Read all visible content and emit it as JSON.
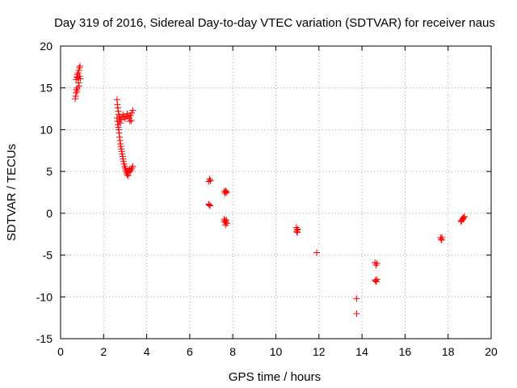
{
  "chart_data": {
    "type": "scatter",
    "title": "Day 319 of 2016, Sidereal Day-to-day VTEC variation (SDTVAR) for receiver naus",
    "xlabel": "GPS time / hours",
    "ylabel": "SDTVAR / TECUs",
    "xlim": [
      0,
      20
    ],
    "ylim": [
      -15,
      20
    ],
    "grid": true,
    "marker": "+",
    "marker_color": "#ff0000",
    "x_ticks": [
      0,
      2,
      4,
      6,
      8,
      10,
      12,
      14,
      16,
      18,
      20
    ],
    "x_tick_labels": [
      "0",
      "2",
      "4",
      "6",
      "8",
      "10",
      "12",
      "14",
      "16",
      "18",
      "20"
    ],
    "y_ticks": [
      -15,
      -10,
      -5,
      0,
      5,
      10,
      15,
      20
    ],
    "y_tick_labels": [
      "-15",
      "-10",
      "-5",
      "0",
      "5",
      "10",
      "15",
      "20"
    ],
    "series": [
      {
        "name": "SDTVAR",
        "points": [
          [
            0.68,
            13.7
          ],
          [
            0.7,
            14.0
          ],
          [
            0.72,
            14.4
          ],
          [
            0.74,
            14.8
          ],
          [
            0.76,
            14.6
          ],
          [
            0.78,
            15.0
          ],
          [
            0.72,
            16.0
          ],
          [
            0.75,
            16.3
          ],
          [
            0.78,
            16.6
          ],
          [
            0.8,
            16.2
          ],
          [
            0.82,
            16.8
          ],
          [
            0.85,
            17.1
          ],
          [
            0.87,
            17.4
          ],
          [
            0.9,
            17.6
          ],
          [
            0.88,
            16.4
          ],
          [
            0.92,
            16.1
          ],
          [
            0.84,
            15.6
          ],
          [
            0.86,
            15.2
          ],
          [
            2.62,
            13.6
          ],
          [
            2.64,
            13.0
          ],
          [
            2.66,
            12.6
          ],
          [
            2.68,
            12.2
          ],
          [
            2.7,
            11.8
          ],
          [
            2.62,
            11.4
          ],
          [
            2.64,
            11.0
          ],
          [
            2.66,
            10.6
          ],
          [
            2.68,
            10.3
          ],
          [
            2.7,
            10.0
          ],
          [
            2.72,
            9.6
          ],
          [
            2.74,
            9.1
          ],
          [
            2.76,
            8.7
          ],
          [
            2.78,
            8.3
          ],
          [
            2.8,
            8.0
          ],
          [
            2.82,
            7.7
          ],
          [
            2.84,
            7.4
          ],
          [
            2.86,
            7.1
          ],
          [
            2.88,
            6.8
          ],
          [
            2.9,
            6.5
          ],
          [
            2.92,
            6.2
          ],
          [
            2.95,
            5.9
          ],
          [
            2.98,
            5.6
          ],
          [
            3.0,
            5.4
          ],
          [
            3.03,
            5.2
          ],
          [
            3.05,
            5.0
          ],
          [
            3.08,
            4.8
          ],
          [
            3.1,
            4.6
          ],
          [
            3.13,
            4.9
          ],
          [
            3.16,
            5.1
          ],
          [
            3.2,
            5.3
          ],
          [
            3.24,
            5.0
          ],
          [
            3.28,
            5.2
          ],
          [
            3.32,
            5.4
          ],
          [
            3.35,
            5.6
          ],
          [
            3.14,
            4.5
          ],
          [
            2.75,
            11.6
          ],
          [
            2.8,
            11.2
          ],
          [
            2.85,
            11.5
          ],
          [
            2.9,
            11.8
          ],
          [
            2.95,
            11.5
          ],
          [
            3.0,
            11.3
          ],
          [
            3.05,
            11.6
          ],
          [
            3.1,
            11.9
          ],
          [
            3.15,
            11.6
          ],
          [
            3.2,
            11.4
          ],
          [
            3.25,
            11.7
          ],
          [
            3.3,
            12.0
          ],
          [
            3.35,
            12.3
          ],
          [
            3.28,
            11.1
          ],
          [
            3.22,
            11.0
          ],
          [
            2.72,
            11.0
          ],
          [
            2.78,
            10.8
          ],
          [
            6.88,
            3.8
          ],
          [
            6.92,
            4.1
          ],
          [
            6.96,
            3.9
          ],
          [
            6.9,
            1.0
          ],
          [
            6.95,
            0.9
          ],
          [
            6.88,
            1.1
          ],
          [
            7.6,
            2.6
          ],
          [
            7.64,
            2.4
          ],
          [
            7.68,
            2.7
          ],
          [
            7.72,
            2.5
          ],
          [
            7.66,
            2.6
          ],
          [
            7.6,
            -0.7
          ],
          [
            7.64,
            -0.9
          ],
          [
            7.68,
            -1.1
          ],
          [
            7.66,
            -1.4
          ],
          [
            7.7,
            -0.8
          ],
          [
            7.72,
            -1.2
          ],
          [
            7.62,
            -1.0
          ],
          [
            10.95,
            -1.7
          ],
          [
            10.98,
            -2.0
          ],
          [
            11.0,
            -2.3
          ],
          [
            11.02,
            -1.9
          ],
          [
            10.97,
            -2.2
          ],
          [
            11.9,
            -4.7
          ],
          [
            13.75,
            -10.2
          ],
          [
            13.75,
            -12.0
          ],
          [
            14.6,
            -5.9
          ],
          [
            14.65,
            -6.2
          ],
          [
            14.7,
            -6.0
          ],
          [
            14.62,
            -8.0
          ],
          [
            14.66,
            -8.2
          ],
          [
            14.7,
            -7.9
          ],
          [
            14.64,
            -8.1
          ],
          [
            17.65,
            -2.9
          ],
          [
            17.68,
            -3.1
          ],
          [
            17.7,
            -3.2
          ],
          [
            17.72,
            -2.9
          ],
          [
            18.6,
            -1.0
          ],
          [
            18.64,
            -0.8
          ],
          [
            18.68,
            -0.6
          ],
          [
            18.72,
            -0.5
          ],
          [
            18.76,
            -0.4
          ],
          [
            18.62,
            -0.9
          ],
          [
            18.7,
            -0.7
          ]
        ]
      }
    ]
  }
}
